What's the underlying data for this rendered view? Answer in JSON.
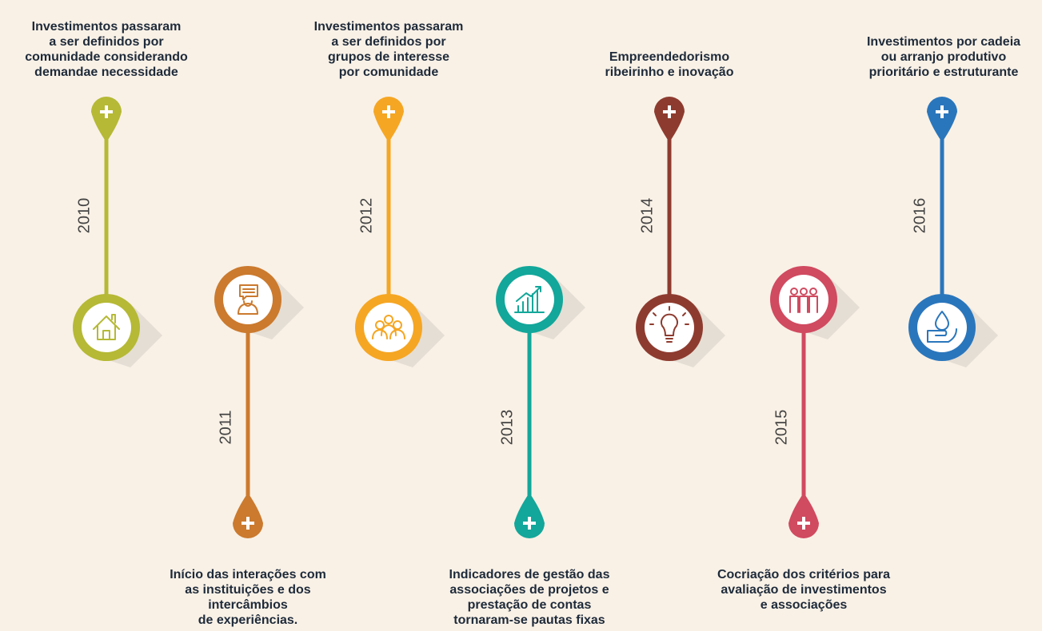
{
  "items": [
    {
      "year": "2010",
      "color": "#b5b935",
      "text": [
        "Investimentos passaram",
        "a ser definidos por",
        "comunidade considerando",
        "demandae necessidade"
      ]
    },
    {
      "year": "2011",
      "color": "#cb7a2e",
      "text": [
        "Início das interações com",
        "as instituições e dos",
        "intercâmbios",
        "de experiências."
      ]
    },
    {
      "year": "2012",
      "color": "#f5a623",
      "text": [
        "Investimentos passaram",
        "a ser definidos por",
        "grupos de interesse",
        "por comunidade"
      ]
    },
    {
      "year": "2013",
      "color": "#12a79a",
      "text": [
        "Indicadores de gestão das",
        "associações de projetos e",
        "prestação de contas",
        "tornaram-se pautas fixas"
      ]
    },
    {
      "year": "2014",
      "color": "#8e3b2f",
      "text": [
        "Empreendedorismo",
        "ribeirinho e inovação"
      ]
    },
    {
      "year": "2015",
      "color": "#d04a60",
      "text": [
        "Cocriação dos critérios para",
        "avaliação de investimentos",
        "e associações"
      ]
    },
    {
      "year": "2016",
      "color": "#2a76bc",
      "text": [
        "Investimentos por cadeia",
        "ou arranjo produtivo",
        "prioritário e estruturante"
      ]
    }
  ]
}
